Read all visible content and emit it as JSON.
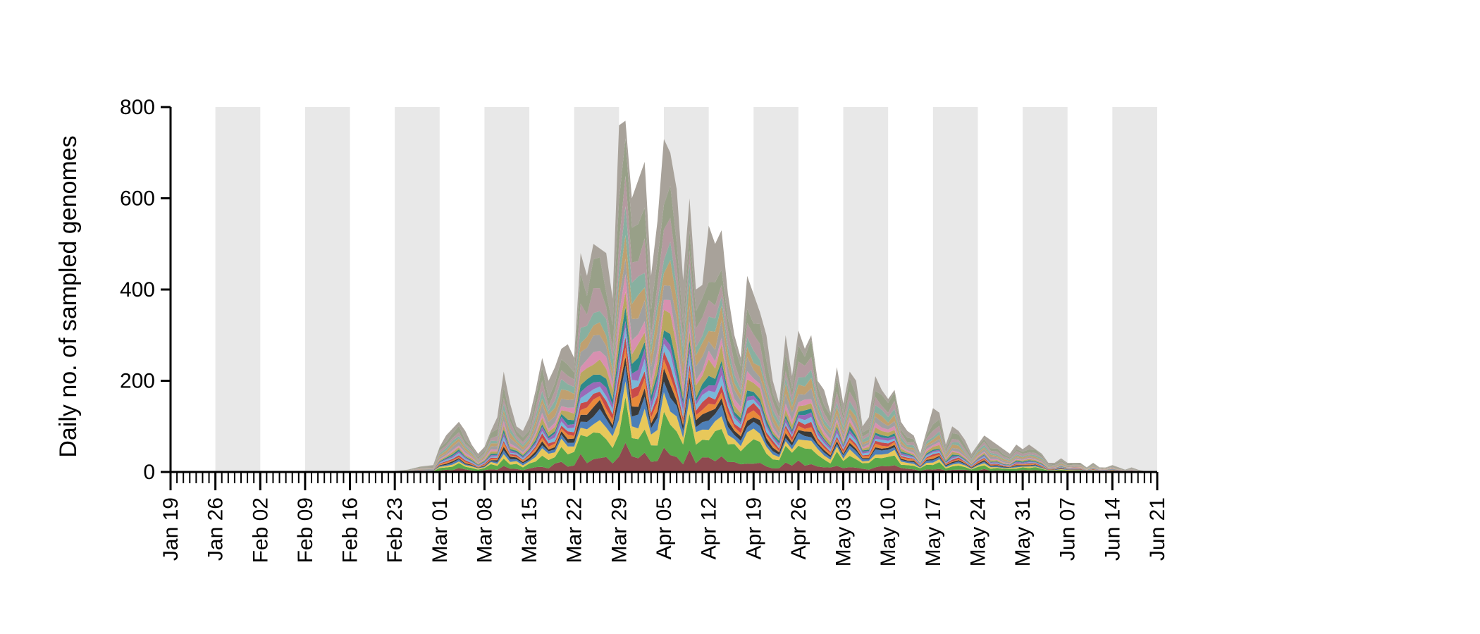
{
  "chart_data": {
    "type": "area",
    "stacked": true,
    "title": "",
    "xlabel": "",
    "ylabel": "Daily no. of sampled genomes",
    "ylim": [
      0,
      800
    ],
    "y_ticks": [
      0,
      200,
      400,
      600,
      800
    ],
    "x_start": "2020-01-19",
    "x_end": "2020-06-21",
    "x_ticks": [
      "Jan 19",
      "Jan 26",
      "Feb 02",
      "Feb 09",
      "Feb 16",
      "Feb 23",
      "Mar 01",
      "Mar 08",
      "Mar 15",
      "Mar 22",
      "Mar 29",
      "Apr 05",
      "Apr 12",
      "Apr 19",
      "Apr 26",
      "May 03",
      "May 10",
      "May 17",
      "May 24",
      "May 31",
      "Jun 07",
      "Jun 14",
      "Jun 21"
    ],
    "week_shading": "alternate weeks shaded light grey",
    "shading_color": "#e8e8e8",
    "series_note": "many lineages stacked; thin multicolor bands above the labeled series",
    "total_series": {
      "dates": [
        "2020-02-23",
        "2020-02-25",
        "2020-02-27",
        "2020-02-29",
        "2020-03-01",
        "2020-03-02",
        "2020-03-03",
        "2020-03-04",
        "2020-03-05",
        "2020-03-06",
        "2020-03-07",
        "2020-03-08",
        "2020-03-09",
        "2020-03-10",
        "2020-03-11",
        "2020-03-12",
        "2020-03-13",
        "2020-03-14",
        "2020-03-15",
        "2020-03-16",
        "2020-03-17",
        "2020-03-18",
        "2020-03-19",
        "2020-03-20",
        "2020-03-21",
        "2020-03-22",
        "2020-03-23",
        "2020-03-24",
        "2020-03-25",
        "2020-03-26",
        "2020-03-27",
        "2020-03-28",
        "2020-03-29",
        "2020-03-30",
        "2020-03-31",
        "2020-04-01",
        "2020-04-02",
        "2020-04-03",
        "2020-04-04",
        "2020-04-05",
        "2020-04-06",
        "2020-04-07",
        "2020-04-08",
        "2020-04-09",
        "2020-04-10",
        "2020-04-11",
        "2020-04-12",
        "2020-04-13",
        "2020-04-14",
        "2020-04-15",
        "2020-04-16",
        "2020-04-17",
        "2020-04-18",
        "2020-04-19",
        "2020-04-20",
        "2020-04-21",
        "2020-04-22",
        "2020-04-23",
        "2020-04-24",
        "2020-04-25",
        "2020-04-26",
        "2020-04-27",
        "2020-04-28",
        "2020-04-29",
        "2020-04-30",
        "2020-05-01",
        "2020-05-02",
        "2020-05-03",
        "2020-05-04",
        "2020-05-05",
        "2020-05-06",
        "2020-05-07",
        "2020-05-08",
        "2020-05-09",
        "2020-05-10",
        "2020-05-11",
        "2020-05-12",
        "2020-05-13",
        "2020-05-14",
        "2020-05-15",
        "2020-05-16",
        "2020-05-17",
        "2020-05-18",
        "2020-05-19",
        "2020-05-20",
        "2020-05-21",
        "2020-05-22",
        "2020-05-23",
        "2020-05-24",
        "2020-05-25",
        "2020-05-26",
        "2020-05-27",
        "2020-05-28",
        "2020-05-29",
        "2020-05-30",
        "2020-05-31",
        "2020-06-01",
        "2020-06-02",
        "2020-06-03",
        "2020-06-04",
        "2020-06-05",
        "2020-06-06",
        "2020-06-07",
        "2020-06-08",
        "2020-06-09",
        "2020-06-10",
        "2020-06-11",
        "2020-06-12",
        "2020-06-13",
        "2020-06-14",
        "2020-06-15",
        "2020-06-16",
        "2020-06-17",
        "2020-06-18",
        "2020-06-19",
        "2020-06-20"
      ],
      "values": [
        2,
        5,
        12,
        15,
        55,
        80,
        95,
        110,
        90,
        60,
        40,
        55,
        90,
        120,
        220,
        150,
        100,
        90,
        120,
        180,
        250,
        200,
        230,
        270,
        280,
        250,
        480,
        430,
        500,
        490,
        480,
        380,
        760,
        770,
        600,
        640,
        680,
        430,
        550,
        730,
        700,
        620,
        420,
        600,
        400,
        410,
        540,
        500,
        530,
        390,
        300,
        250,
        430,
        390,
        350,
        300,
        200,
        150,
        300,
        210,
        310,
        270,
        300,
        200,
        180,
        130,
        230,
        150,
        220,
        200,
        100,
        120,
        210,
        180,
        160,
        180,
        110,
        90,
        80,
        40,
        90,
        140,
        130,
        60,
        100,
        90,
        70,
        40,
        60,
        80,
        70,
        60,
        50,
        40,
        60,
        50,
        60,
        50,
        40,
        20,
        20,
        30,
        20,
        20,
        20,
        10,
        20,
        10,
        10,
        15,
        10,
        5,
        10,
        5,
        2,
        0
      ],
      "units": "genomes per day"
    },
    "series": [
      {
        "name": "",
        "color": "#8e4a4f",
        "share": 0.06
      },
      {
        "name": "",
        "color": "#5aa84a",
        "share": 0.1
      },
      {
        "name": "",
        "color": "#e8c85a",
        "share": 0.05
      },
      {
        "name": "",
        "color": "#4d7fb8",
        "share": 0.04
      },
      {
        "name": "",
        "color": "#3a3a3a",
        "share": 0.03
      },
      {
        "name": "",
        "color": "#e8893a",
        "share": 0.03
      },
      {
        "name": "",
        "color": "#c84a4a",
        "share": 0.03
      },
      {
        "name": "",
        "color": "#7ab8d8",
        "share": 0.03
      },
      {
        "name": "",
        "color": "#9a6ab8",
        "share": 0.03
      },
      {
        "name": "",
        "color": "#2e8a8a",
        "share": 0.03
      },
      {
        "name": "",
        "color": "#b8a860",
        "share": 0.05
      },
      {
        "name": "",
        "color": "#d890b0",
        "share": 0.04
      },
      {
        "name": "",
        "color": "#a0a0a0",
        "share": 0.06
      },
      {
        "name": "",
        "color": "#c0a070",
        "share": 0.06
      },
      {
        "name": "",
        "color": "#88b0a0",
        "share": 0.06
      },
      {
        "name": "",
        "color": "#b49aa0",
        "share": 0.08
      },
      {
        "name": "",
        "color": "#98a088",
        "share": 0.1
      },
      {
        "name": "",
        "color": "#a8a29a",
        "share": 0.18
      }
    ]
  }
}
